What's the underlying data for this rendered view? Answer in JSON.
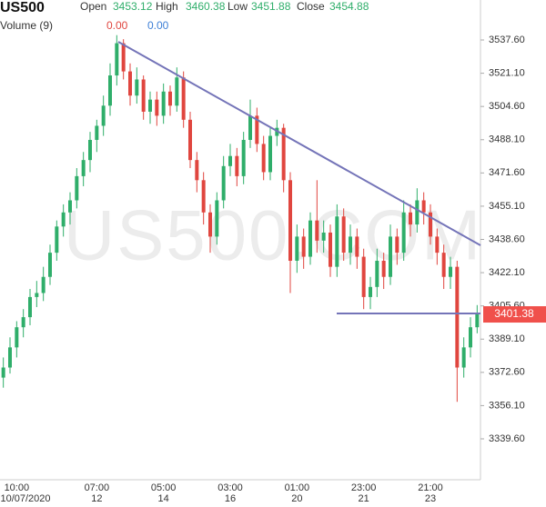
{
  "header": {
    "symbol": "US500",
    "open_label": "Open",
    "open": 3453.12,
    "high_label": "High",
    "high": 3460.38,
    "low_label": "Low",
    "low": 3451.88,
    "close_label": "Close",
    "close": 3454.88,
    "volume_label": "Volume (9)",
    "volume_a": "0.00",
    "volume_b": "0.00"
  },
  "chart_data": {
    "type": "candlestick",
    "watermark": "US500.COM",
    "ylim": [
      3319.3,
      3557.45
    ],
    "yticks": [
      {
        "value": 3537.6,
        "label": "3537.60"
      },
      {
        "value": 3521.1,
        "label": "3521.10"
      },
      {
        "value": 3504.6,
        "label": "3504.60"
      },
      {
        "value": 3488.1,
        "label": "3488.10"
      },
      {
        "value": 3471.6,
        "label": "3471.60"
      },
      {
        "value": 3455.1,
        "label": "3455.10"
      },
      {
        "value": 3438.6,
        "label": "3438.60"
      },
      {
        "value": 3422.1,
        "label": "3422.10"
      },
      {
        "value": 3405.6,
        "label": "3405.60"
      },
      {
        "value": 3389.1,
        "label": "3389.10"
      },
      {
        "value": 3372.6,
        "label": "3372.60"
      },
      {
        "value": 3356.1,
        "label": "3356.10"
      },
      {
        "value": 3339.6,
        "label": "3339.60"
      }
    ],
    "up_color": "#2fae6a",
    "down_color": "#e0463f",
    "categories": [
      null,
      null,
      "10:00",
      null,
      null,
      null,
      null,
      null,
      null,
      null,
      null,
      null,
      null,
      null,
      "07:00",
      null,
      null,
      null,
      null,
      null,
      null,
      null,
      null,
      null,
      "05:00",
      null,
      null,
      null,
      null,
      null,
      null,
      null,
      null,
      null,
      "03:00",
      null,
      null,
      null,
      null,
      null,
      null,
      null,
      null,
      null,
      "01:00",
      null,
      null,
      null,
      null,
      null,
      null,
      null,
      null,
      null,
      "23:00",
      null,
      null,
      null,
      null,
      null,
      null,
      null,
      null,
      null,
      "21:00",
      null,
      null,
      null,
      null,
      null,
      null,
      null
    ],
    "dates": [
      null,
      null,
      "10/07/2020",
      null,
      null,
      null,
      null,
      null,
      null,
      null,
      null,
      null,
      null,
      null,
      "12",
      null,
      null,
      null,
      null,
      null,
      null,
      null,
      null,
      null,
      "14",
      null,
      null,
      null,
      null,
      null,
      null,
      null,
      null,
      null,
      "16",
      null,
      null,
      null,
      null,
      null,
      null,
      null,
      null,
      null,
      "20",
      null,
      null,
      null,
      null,
      null,
      null,
      null,
      null,
      null,
      "21",
      null,
      null,
      null,
      null,
      null,
      null,
      null,
      null,
      null,
      "23",
      null,
      null,
      null,
      null,
      null,
      null,
      null
    ],
    "candles": [
      [
        3370,
        3380,
        3365,
        3375
      ],
      [
        3375,
        3390,
        3372,
        3385
      ],
      [
        3385,
        3398,
        3380,
        3395
      ],
      [
        3395,
        3404,
        3390,
        3400
      ],
      [
        3400,
        3414,
        3396,
        3410
      ],
      [
        3410,
        3418,
        3405,
        3412
      ],
      [
        3412,
        3425,
        3408,
        3420
      ],
      [
        3420,
        3436,
        3416,
        3432
      ],
      [
        3432,
        3448,
        3428,
        3445
      ],
      [
        3445,
        3456,
        3440,
        3452
      ],
      [
        3452,
        3462,
        3446,
        3458
      ],
      [
        3458,
        3474,
        3454,
        3470
      ],
      [
        3470,
        3482,
        3465,
        3478
      ],
      [
        3478,
        3492,
        3472,
        3488
      ],
      [
        3488,
        3498,
        3482,
        3495
      ],
      [
        3495,
        3510,
        3490,
        3505
      ],
      [
        3505,
        3526,
        3500,
        3520
      ],
      [
        3520,
        3540,
        3515,
        3536
      ],
      [
        3536,
        3538,
        3518,
        3522
      ],
      [
        3522,
        3526,
        3505,
        3510
      ],
      [
        3510,
        3524,
        3506,
        3518
      ],
      [
        3518,
        3520,
        3498,
        3502
      ],
      [
        3502,
        3512,
        3496,
        3508
      ],
      [
        3508,
        3512,
        3495,
        3500
      ],
      [
        3500,
        3516,
        3496,
        3512
      ],
      [
        3512,
        3515,
        3500,
        3505
      ],
      [
        3505,
        3524,
        3502,
        3519
      ],
      [
        3519,
        3522,
        3494,
        3498
      ],
      [
        3498,
        3502,
        3474,
        3478
      ],
      [
        3478,
        3482,
        3462,
        3468
      ],
      [
        3468,
        3472,
        3446,
        3452
      ],
      [
        3452,
        3456,
        3432,
        3440
      ],
      [
        3440,
        3462,
        3436,
        3458
      ],
      [
        3458,
        3480,
        3454,
        3475
      ],
      [
        3475,
        3486,
        3470,
        3480
      ],
      [
        3480,
        3484,
        3465,
        3470
      ],
      [
        3470,
        3492,
        3466,
        3488
      ],
      [
        3488,
        3508,
        3484,
        3500
      ],
      [
        3500,
        3504,
        3482,
        3486
      ],
      [
        3486,
        3490,
        3468,
        3472
      ],
      [
        3472,
        3494,
        3468,
        3490
      ],
      [
        3490,
        3498,
        3485,
        3494
      ],
      [
        3494,
        3496,
        3462,
        3468
      ],
      [
        3468,
        3472,
        3412,
        3428
      ],
      [
        3428,
        3446,
        3422,
        3440
      ],
      [
        3440,
        3444,
        3424,
        3430
      ],
      [
        3430,
        3452,
        3426,
        3448
      ],
      [
        3448,
        3468,
        3432,
        3438
      ],
      [
        3438,
        3448,
        3432,
        3442
      ],
      [
        3442,
        3446,
        3420,
        3425
      ],
      [
        3425,
        3456,
        3420,
        3450
      ],
      [
        3450,
        3454,
        3428,
        3432
      ],
      [
        3432,
        3446,
        3426,
        3440
      ],
      [
        3440,
        3444,
        3424,
        3430
      ],
      [
        3430,
        3434,
        3404,
        3410
      ],
      [
        3410,
        3420,
        3404,
        3415
      ],
      [
        3415,
        3434,
        3410,
        3428
      ],
      [
        3428,
        3432,
        3414,
        3420
      ],
      [
        3420,
        3446,
        3416,
        3440
      ],
      [
        3440,
        3444,
        3426,
        3432
      ],
      [
        3432,
        3458,
        3428,
        3452
      ],
      [
        3452,
        3456,
        3440,
        3446
      ],
      [
        3446,
        3464,
        3442,
        3458
      ],
      [
        3458,
        3462,
        3446,
        3452
      ],
      [
        3452,
        3456,
        3436,
        3440
      ],
      [
        3440,
        3444,
        3426,
        3432
      ],
      [
        3432,
        3436,
        3414,
        3420
      ],
      [
        3420,
        3430,
        3414,
        3425
      ],
      [
        3425,
        3428,
        3358,
        3375
      ],
      [
        3375,
        3390,
        3370,
        3385
      ],
      [
        3385,
        3400,
        3380,
        3395
      ],
      [
        3395,
        3406,
        3392,
        3401.38
      ]
    ],
    "price_badge_color": "#f0504b"
  }
}
